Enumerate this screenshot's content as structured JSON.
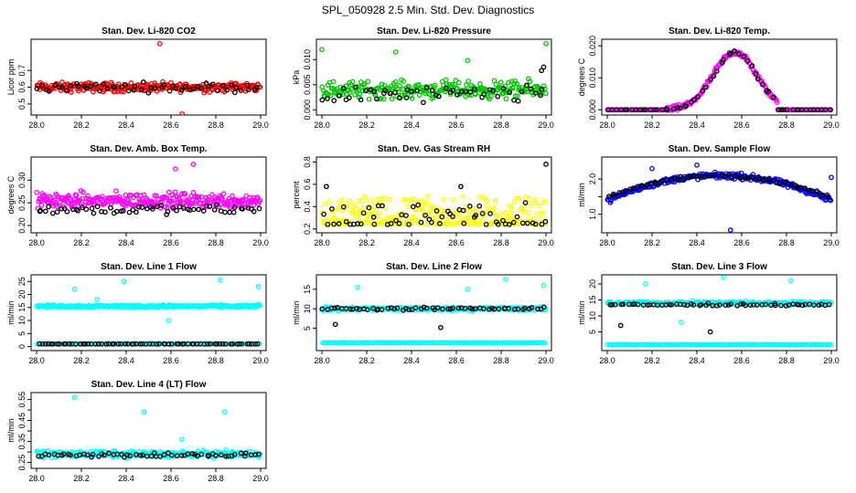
{
  "title": "SPL_050928  2.5 Min. Std. Dev. Diagnostics",
  "chart_data": [
    {
      "type": "scatter",
      "title": "Stan. Dev. Li-820 CO2",
      "ylabel": "Licor ppm",
      "xlim": [
        28.0,
        29.0
      ],
      "ylim": [
        0.45,
        0.87
      ],
      "yticks": [
        0.5,
        0.6,
        0.7
      ],
      "ytick_labels": [
        "0.5",
        "0.6",
        "0.7"
      ],
      "series": [
        {
          "name": "samples",
          "color": "#ff0000",
          "model": "flat",
          "base": 0.6,
          "spread": 0.04,
          "n": 260,
          "outliers": [
            [
              28.55,
              0.86
            ],
            [
              28.65,
              0.44
            ]
          ]
        },
        {
          "name": "reference",
          "color": "#000000",
          "model": "flat",
          "base": 0.6,
          "spread": 0.04,
          "n": 55
        }
      ]
    },
    {
      "type": "scatter",
      "title": "Stan. Dev. Li-820 Pressure",
      "ylabel": "kPa",
      "xlim": [
        28.0,
        29.0
      ],
      "ylim": [
        -0.0005,
        0.0135
      ],
      "yticks": [
        0.0,
        0.005,
        0.01
      ],
      "ytick_labels": [
        "0.000",
        "0.005",
        "0.010"
      ],
      "series": [
        {
          "name": "samples",
          "color": "#00c800",
          "model": "flat",
          "base": 0.004,
          "spread": 0.0025,
          "n": 250,
          "outliers": [
            [
              28.0,
              0.012
            ],
            [
              28.33,
              0.0115
            ],
            [
              28.65,
              0.0098
            ],
            [
              29.0,
              0.0132
            ]
          ]
        },
        {
          "name": "reference",
          "color": "#000000",
          "model": "flat",
          "base": 0.003,
          "spread": 0.0025,
          "n": 50,
          "outliers": [
            [
              28.99,
              0.0085
            ],
            [
              28.98,
              0.0078
            ]
          ]
        }
      ]
    },
    {
      "type": "scatter",
      "title": "Stan. Dev. Li-820 Temp.",
      "ylabel": "degrees C",
      "xlim": [
        28.0,
        29.0
      ],
      "ylim": [
        -0.0008,
        0.0212
      ],
      "yticks": [
        0.0,
        0.01,
        0.02
      ],
      "ytick_labels": [
        "0.000",
        "0.010",
        "0.020"
      ],
      "series": [
        {
          "name": "samples",
          "color": "#ff00ff",
          "model": "hump",
          "base": 0.0,
          "peak": 0.018,
          "center": 28.57,
          "width": 0.15,
          "start": 28.26,
          "end": 28.76,
          "spread": 0.0013,
          "n": 260
        },
        {
          "name": "reference",
          "color": "#000000",
          "model": "hump",
          "base": 0.0,
          "peak": 0.018,
          "center": 28.57,
          "width": 0.15,
          "start": 28.26,
          "end": 28.76,
          "spread": 0.001,
          "n": 60
        }
      ]
    },
    {
      "type": "scatter",
      "title": "Stan. Dev. Amb. Box Temp.",
      "ylabel": "degrees C",
      "xlim": [
        28.0,
        29.0
      ],
      "ylim": [
        0.19,
        0.345
      ],
      "yticks": [
        0.2,
        0.25,
        0.3
      ],
      "ytick_labels": [
        "0.20",
        "0.25",
        "0.30"
      ],
      "series": [
        {
          "name": "samples",
          "color": "#ff00ff",
          "model": "flat",
          "base": 0.255,
          "spread": 0.025,
          "n": 280,
          "outliers": [
            [
              28.7,
              0.335
            ],
            [
              28.62,
              0.325
            ]
          ]
        },
        {
          "name": "reference",
          "color": "#000000",
          "model": "flat",
          "base": 0.235,
          "spread": 0.015,
          "n": 60
        }
      ]
    },
    {
      "type": "scatter",
      "title": "Stan. Dev. Gas Stream RH",
      "ylabel": "percent",
      "xlim": [
        28.0,
        29.0
      ],
      "ylim": [
        0.19,
        0.82
      ],
      "yticks": [
        0.2,
        0.4,
        0.6,
        0.8
      ],
      "ytick_labels": [
        "0.2",
        "0.4",
        "0.6",
        "0.8"
      ],
      "series": [
        {
          "name": "samples",
          "color": "#ffff00",
          "model": "skew",
          "base": 0.21,
          "spread": 0.25,
          "n": 290
        },
        {
          "name": "reference",
          "color": "#000000",
          "model": "skew",
          "base": 0.21,
          "spread": 0.2,
          "n": 60,
          "outliers": [
            [
              29.0,
              0.78
            ],
            [
              28.02,
              0.58
            ],
            [
              28.62,
              0.58
            ]
          ]
        }
      ]
    },
    {
      "type": "scatter",
      "title": "Stan. Dev. Sample Flow",
      "ylabel": "ml/min",
      "xlim": [
        28.0,
        29.0
      ],
      "ylim": [
        0.55,
        2.55
      ],
      "yticks": [
        1.0,
        1.5,
        2.0
      ],
      "ytick_labels": [
        "1.0",
        "",
        "2.0"
      ],
      "series": [
        {
          "name": "samples",
          "color": "#0000ff",
          "model": "arch",
          "base": 1.25,
          "peak": 2.1,
          "center": 28.5,
          "spread": 0.12,
          "n": 270,
          "outliers": [
            [
              28.55,
              0.55
            ],
            [
              28.4,
              2.4
            ],
            [
              28.2,
              2.3
            ],
            [
              29.0,
              2.05
            ]
          ]
        },
        {
          "name": "reference",
          "color": "#000000",
          "model": "arch",
          "base": 1.35,
          "peak": 2.1,
          "center": 28.5,
          "spread": 0.06,
          "n": 65
        }
      ]
    },
    {
      "type": "scatter",
      "title": "Stan. Dev. Line 1 Flow",
      "ylabel": "ml/min",
      "xlim": [
        28.0,
        29.0
      ],
      "ylim": [
        -0.5,
        26.5
      ],
      "yticks": [
        0,
        5,
        10,
        15,
        20,
        25
      ],
      "ytick_labels": [
        "0",
        "5",
        "10",
        "15",
        "20",
        "25"
      ],
      "series": [
        {
          "name": "samples",
          "color": "#00ffff",
          "model": "flat",
          "base": 15.5,
          "spread": 0.8,
          "n": 250,
          "outliers": [
            [
              28.17,
              22
            ],
            [
              28.39,
              25
            ],
            [
              28.82,
              25.5
            ],
            [
              28.99,
              23
            ],
            [
              28.59,
              10
            ],
            [
              28.27,
              18
            ]
          ]
        },
        {
          "name": "samples-low",
          "color": "#00ffff",
          "model": "flat",
          "base": 1.0,
          "spread": 0.08,
          "n": 150
        },
        {
          "name": "reference",
          "color": "#000000",
          "model": "flat",
          "base": 1.0,
          "spread": 0.08,
          "n": 70
        }
      ]
    },
    {
      "type": "scatter",
      "title": "Stan. Dev. Line 2 Flow",
      "ylabel": "ml/min",
      "xlim": [
        28.0,
        29.0
      ],
      "ylim": [
        0.0,
        18.0
      ],
      "yticks": [
        5,
        10,
        15
      ],
      "ytick_labels": [
        "5",
        "10",
        "15"
      ],
      "series": [
        {
          "name": "samples",
          "color": "#00ffff",
          "model": "flat",
          "base": 10.0,
          "spread": 0.7,
          "n": 250,
          "outliers": [
            [
              28.16,
              15.5
            ],
            [
              28.82,
              17.5
            ],
            [
              28.99,
              16
            ],
            [
              28.65,
              15
            ]
          ]
        },
        {
          "name": "samples-low",
          "color": "#00ffff",
          "model": "flat",
          "base": 1.3,
          "spread": 0.08,
          "n": 150
        },
        {
          "name": "reference",
          "color": "#000000",
          "model": "flat",
          "base": 10.0,
          "spread": 0.5,
          "n": 60,
          "outliers": [
            [
              28.06,
              6
            ],
            [
              28.53,
              5.2
            ]
          ]
        }
      ]
    },
    {
      "type": "scatter",
      "title": "Stan. Dev. Line 3 Flow",
      "ylabel": "ml/min",
      "xlim": [
        28.0,
        29.0
      ],
      "ylim": [
        0.0,
        22.0
      ],
      "yticks": [
        5,
        10,
        15,
        20
      ],
      "ytick_labels": [
        "5",
        "10",
        "15",
        "20"
      ],
      "series": [
        {
          "name": "samples",
          "color": "#00ffff",
          "model": "flat",
          "base": 14.0,
          "spread": 0.8,
          "n": 250,
          "outliers": [
            [
              28.17,
              20
            ],
            [
              28.33,
              8
            ],
            [
              28.82,
              21
            ],
            [
              28.52,
              22
            ]
          ]
        },
        {
          "name": "samples-low",
          "color": "#00ffff",
          "model": "flat",
          "base": 1.0,
          "spread": 0.08,
          "n": 150
        },
        {
          "name": "reference",
          "color": "#000000",
          "model": "flat",
          "base": 13.5,
          "spread": 0.5,
          "n": 60,
          "outliers": [
            [
              28.06,
              7
            ],
            [
              28.46,
              5
            ]
          ]
        }
      ]
    },
    {
      "type": "scatter",
      "title": "Stan. Dev. Line 4 (LT) Flow",
      "ylabel": "ml/min",
      "xlim": [
        28.0,
        29.0
      ],
      "ylim": [
        0.235,
        0.57
      ],
      "yticks": [
        0.25,
        0.3,
        0.35,
        0.4,
        0.45,
        0.5,
        0.55
      ],
      "ytick_labels": [
        "0.25",
        "",
        "0.35",
        "",
        "0.45",
        "",
        "0.55"
      ],
      "series": [
        {
          "name": "samples",
          "color": "#00ffff",
          "model": "flat",
          "base": 0.29,
          "spread": 0.022,
          "n": 260,
          "outliers": [
            [
              28.17,
              0.56
            ],
            [
              28.48,
              0.49
            ],
            [
              28.84,
              0.49
            ],
            [
              28.65,
              0.36
            ]
          ]
        },
        {
          "name": "reference",
          "color": "#000000",
          "model": "flat",
          "base": 0.285,
          "spread": 0.015,
          "n": 60
        }
      ]
    }
  ],
  "xticks": [
    28.0,
    28.2,
    28.4,
    28.6,
    28.8,
    29.0
  ],
  "xtick_labels": [
    "28.0",
    "28.2",
    "28.4",
    "28.6",
    "28.8",
    "29.0"
  ]
}
